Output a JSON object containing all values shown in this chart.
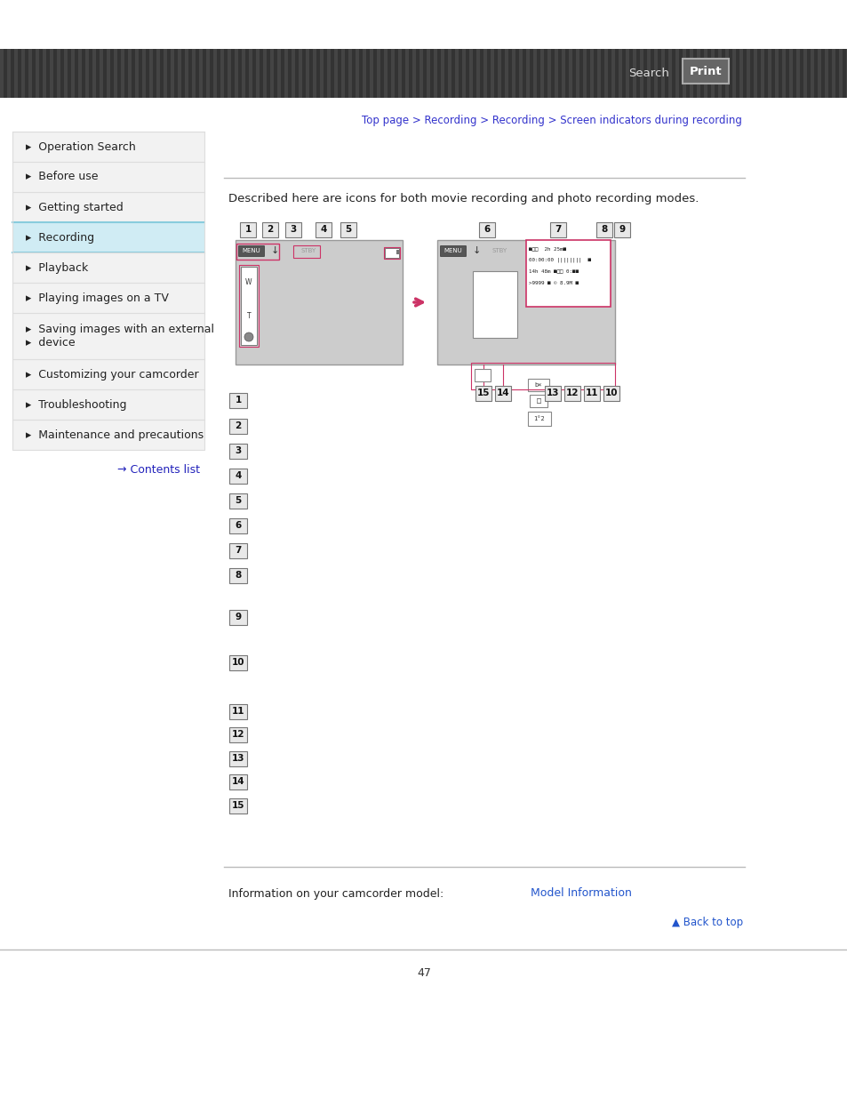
{
  "bg_color": "#ffffff",
  "header_bg": "#444444",
  "header_stripe_color": "#333333",
  "header_text_color": "#ffffff",
  "header_search": "Search",
  "header_print": "Print",
  "breadcrumb": "Top page > Recording > Recording > Screen indicators during recording",
  "breadcrumb_color": "#3333cc",
  "sidebar_items": [
    "Operation Search",
    "Before use",
    "Getting started",
    "Recording",
    "Playback",
    "Playing images on a TV",
    "Saving images with an external\ndevice",
    "Customizing your camcorder",
    "Troubleshooting",
    "Maintenance and precautions"
  ],
  "sidebar_active": "Recording",
  "sidebar_active_bg": "#d0ecf4",
  "sidebar_active_border": "#88ccdd",
  "sidebar_bg": "#f2f2f2",
  "sidebar_border": "#dddddd",
  "contents_link": "→ Contents list",
  "contents_link_color": "#2222bb",
  "description": "Described here are icons for both movie recording and photo recording modes.",
  "numbered_items": [
    "1",
    "2",
    "3",
    "4",
    "5",
    "6",
    "7",
    "8",
    "9",
    "10",
    "11",
    "12",
    "13",
    "14",
    "15"
  ],
  "footer_prefix": "Information on your camcorder model: ",
  "footer_link": "Model Information",
  "footer_link_color": "#2255cc",
  "back_to_top": "▲ Back to top",
  "back_to_top_color": "#2255cc",
  "page_number": "47",
  "separator_color": "#bbbbbb",
  "pink_color": "#cc3366",
  "cam_bg": "#cccccc",
  "cam_border": "#999999"
}
